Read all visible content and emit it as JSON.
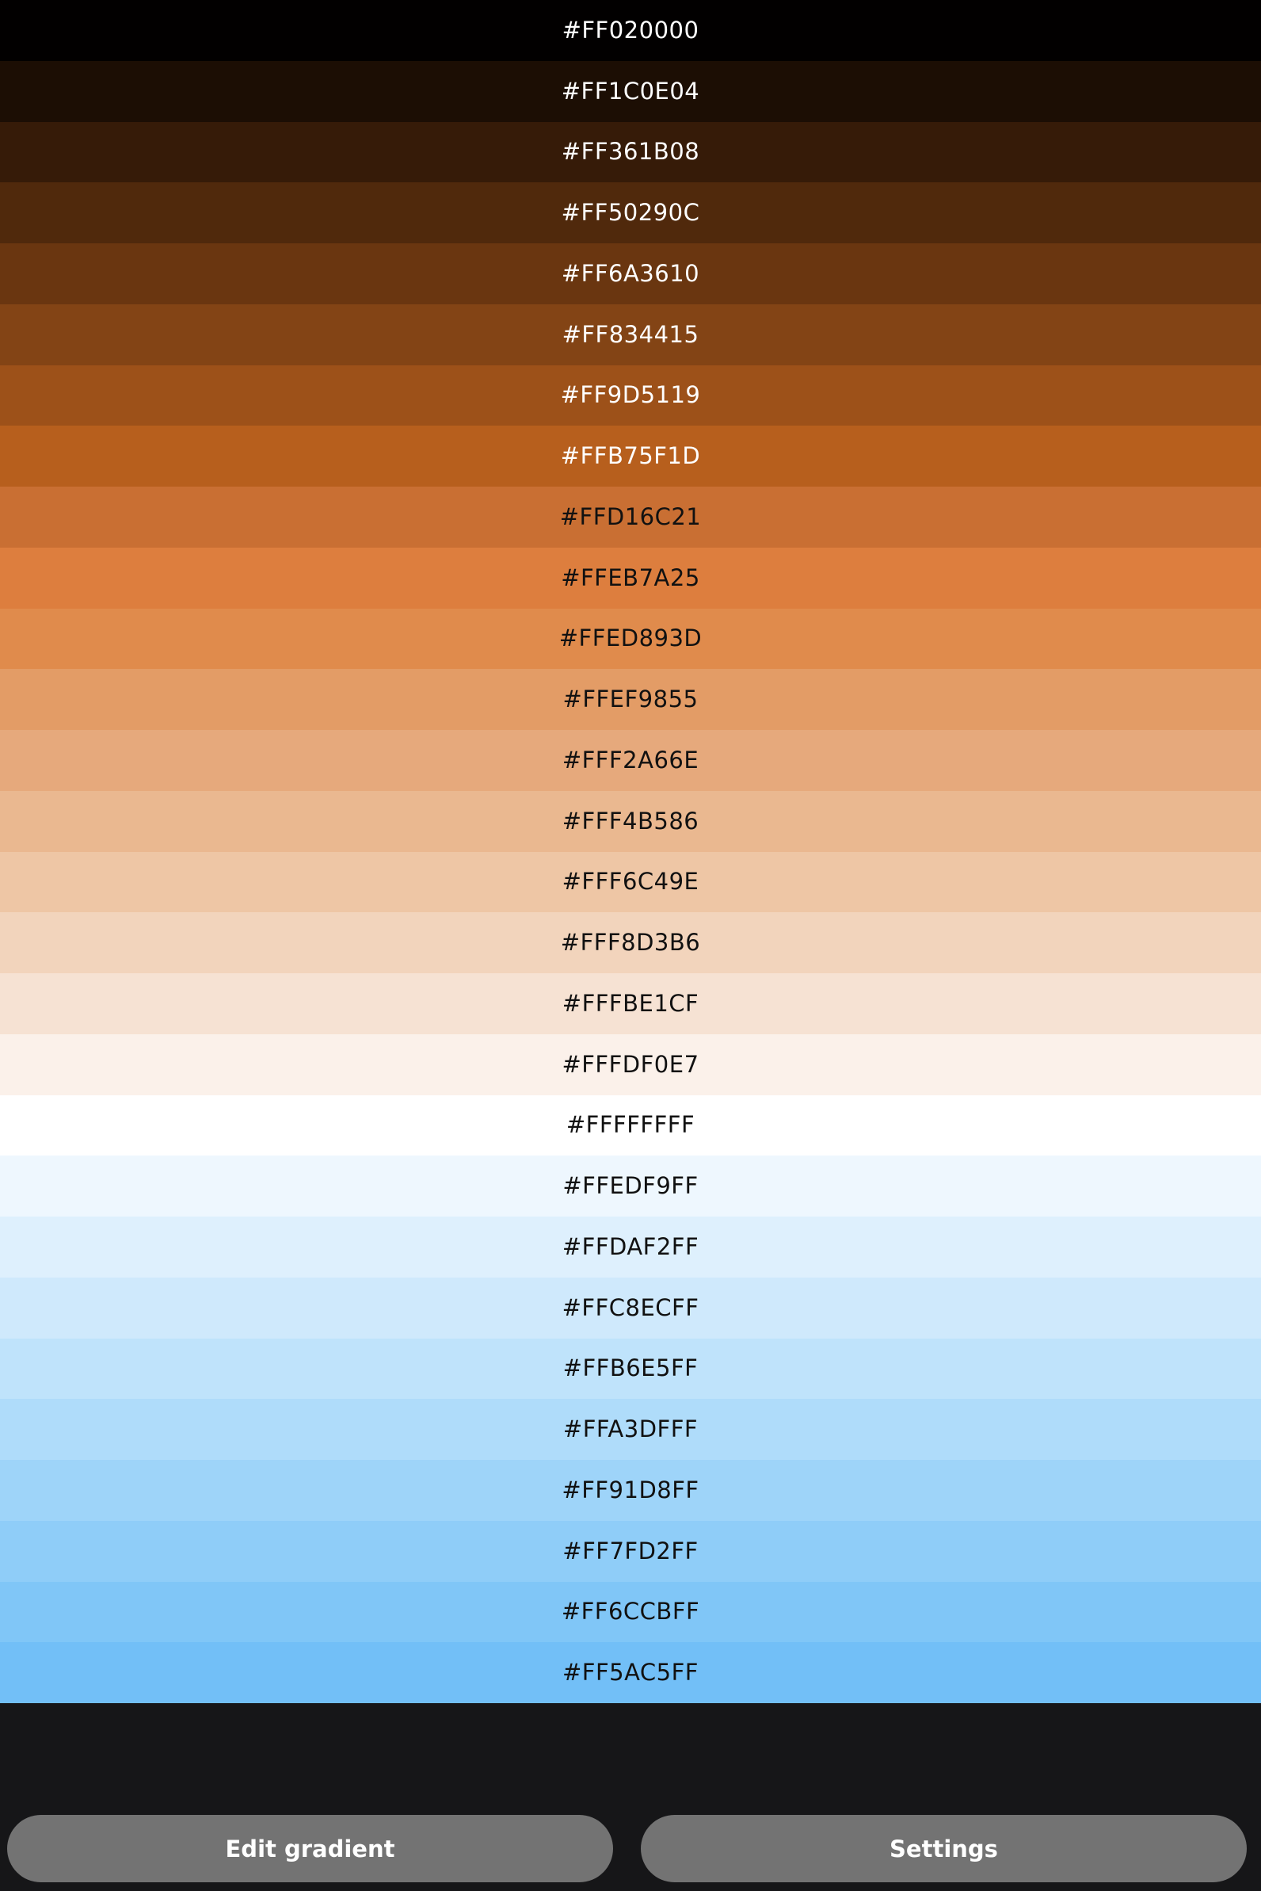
{
  "swatches": [
    {
      "label": "#FF020000",
      "bg": "#020000",
      "fg": "#ffffff"
    },
    {
      "label": "#FF1C0E04",
      "bg": "#1C0E04",
      "fg": "#ffffff"
    },
    {
      "label": "#FF361B08",
      "bg": "#361B08",
      "fg": "#ffffff"
    },
    {
      "label": "#FF50290C",
      "bg": "#50290C",
      "fg": "#ffffff"
    },
    {
      "label": "#FF6A3610",
      "bg": "#6A3610",
      "fg": "#ffffff"
    },
    {
      "label": "#FF834415",
      "bg": "#834415",
      "fg": "#ffffff"
    },
    {
      "label": "#FF9D5119",
      "bg": "#9D5119",
      "fg": "#ffffff"
    },
    {
      "label": "#FFB75F1D",
      "bg": "#B75F1D",
      "fg": "#ffffff"
    },
    {
      "label": "#FFD16C21",
      "bg": "#C96F33",
      "fg": "#111111"
    },
    {
      "label": "#FFEB7A25",
      "bg": "#DD7E3E",
      "fg": "#111111"
    },
    {
      "label": "#FFED893D",
      "bg": "#E08B4C",
      "fg": "#111111"
    },
    {
      "label": "#FFEF9855",
      "bg": "#E39C66",
      "fg": "#111111"
    },
    {
      "label": "#FFF2A66E",
      "bg": "#E6A97C",
      "fg": "#111111"
    },
    {
      "label": "#FFF4B586",
      "bg": "#EAB890",
      "fg": "#111111"
    },
    {
      "label": "#FFF6C49E",
      "bg": "#EEC6A5",
      "fg": "#111111"
    },
    {
      "label": "#FFF8D3B6",
      "bg": "#F2D4BC",
      "fg": "#111111"
    },
    {
      "label": "#FFFBE1CF",
      "bg": "#F6E2D3",
      "fg": "#111111"
    },
    {
      "label": "#FFFDF0E7",
      "bg": "#FBF1EA",
      "fg": "#111111"
    },
    {
      "label": "#FFFFFFFF",
      "bg": "#FFFFFF",
      "fg": "#111111"
    },
    {
      "label": "#FFEDF9FF",
      "bg": "#EEF7FE",
      "fg": "#111111"
    },
    {
      "label": "#FFDAF2FF",
      "bg": "#DEF0FD",
      "fg": "#111111"
    },
    {
      "label": "#FFC8ECFF",
      "bg": "#CFE9FC",
      "fg": "#111111"
    },
    {
      "label": "#FFB6E5FF",
      "bg": "#BFE3FB",
      "fg": "#111111"
    },
    {
      "label": "#FFA3DFFF",
      "bg": "#AFDCFA",
      "fg": "#111111"
    },
    {
      "label": "#FF91D8FF",
      "bg": "#9ED4F9",
      "fg": "#111111"
    },
    {
      "label": "#FF7FD2FF",
      "bg": "#8FCDF8",
      "fg": "#111111"
    },
    {
      "label": "#FF6CCBFF",
      "bg": "#80C6F7",
      "fg": "#111111"
    },
    {
      "label": "#FF5AC5FF",
      "bg": "#72BFF7",
      "fg": "#111111"
    }
  ],
  "buttons": {
    "edit_gradient_label": "Edit gradient",
    "settings_label": "Settings"
  },
  "colors": {
    "background": "#161618",
    "button_bg": "#737373",
    "button_text": "#ffffff"
  }
}
